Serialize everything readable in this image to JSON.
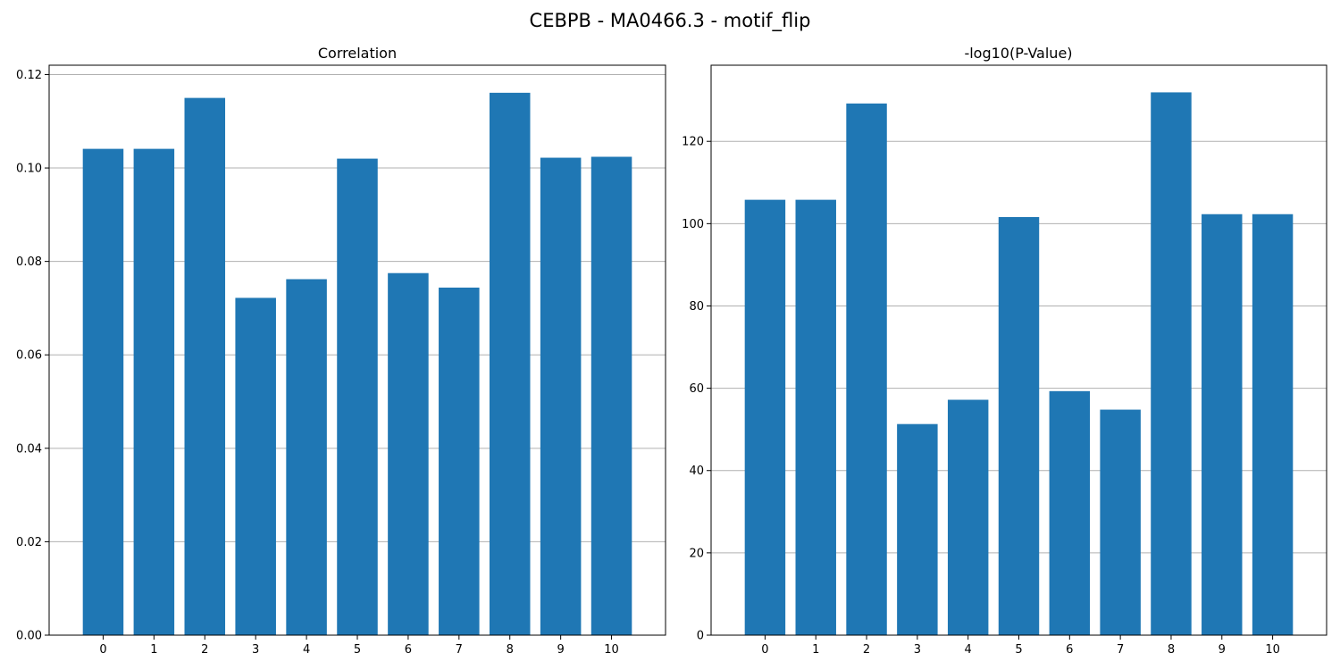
{
  "figure": {
    "title": "CEBPB - MA0466.3 - motif_flip"
  },
  "bar_color": "#1f77b4",
  "grid_color": "#b0b0b0",
  "chart_data": [
    {
      "type": "bar",
      "title": "Correlation",
      "xlabel": "",
      "ylabel": "",
      "categories": [
        "0",
        "1",
        "2",
        "3",
        "4",
        "5",
        "6",
        "7",
        "8",
        "9",
        "10"
      ],
      "values": [
        0.1041,
        0.1041,
        0.115,
        0.0722,
        0.0762,
        0.102,
        0.0775,
        0.0744,
        0.1161,
        0.1022,
        0.1024
      ],
      "ylim": [
        0,
        0.122
      ],
      "yticks": [
        0.0,
        0.02,
        0.04,
        0.06,
        0.08,
        0.1,
        0.12
      ],
      "ytick_labels": [
        "0.00",
        "0.02",
        "0.04",
        "0.06",
        "0.08",
        "0.10",
        "0.12"
      ],
      "grid": "y"
    },
    {
      "type": "bar",
      "title": "-log10(P-Value)",
      "xlabel": "",
      "ylabel": "",
      "categories": [
        "0",
        "1",
        "2",
        "3",
        "4",
        "5",
        "6",
        "7",
        "8",
        "9",
        "10"
      ],
      "values": [
        105.8,
        105.8,
        129.2,
        51.3,
        57.2,
        101.6,
        59.3,
        54.8,
        131.9,
        102.3,
        102.3
      ],
      "ylim": [
        0,
        138.5
      ],
      "yticks": [
        0,
        20,
        40,
        60,
        80,
        100,
        120
      ],
      "ytick_labels": [
        "0",
        "20",
        "40",
        "60",
        "80",
        "100",
        "120"
      ],
      "grid": "y"
    }
  ]
}
